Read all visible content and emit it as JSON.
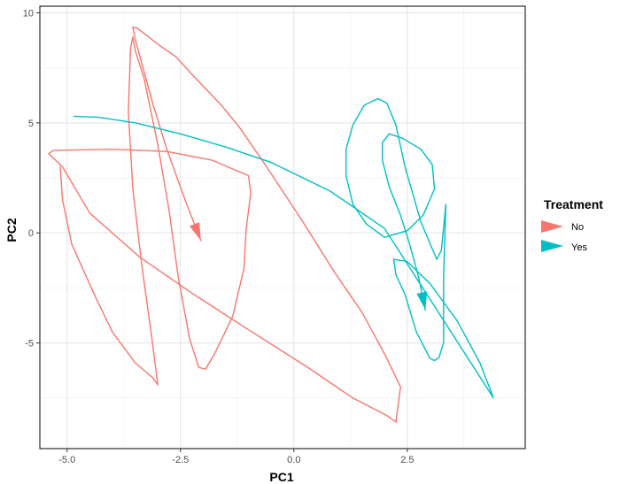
{
  "chart_data": {
    "type": "line",
    "xlabel": "PC1",
    "ylabel": "PC2",
    "xlim": [
      -5.6,
      5.1
    ],
    "ylim": [
      -9.8,
      10.3
    ],
    "x_ticks": [
      -5.0,
      -2.5,
      0.0,
      2.5
    ],
    "x_tick_labels": [
      "-5.0",
      "-2.5",
      "0.0",
      "2.5"
    ],
    "y_ticks": [
      -5,
      0,
      5,
      10
    ],
    "y_tick_labels": [
      "-5",
      "0",
      "5",
      "10"
    ],
    "grid": true,
    "legend": {
      "title": "Treatment",
      "placement": "right"
    },
    "series": [
      {
        "name": "No",
        "color": "#F8766D",
        "points": [
          [
            -2.05,
            -0.35
          ],
          [
            -2.4,
            1.5
          ],
          [
            -2.8,
            3.8
          ],
          [
            -3.1,
            5.8
          ],
          [
            -3.3,
            7.3
          ],
          [
            -3.5,
            8.8
          ],
          [
            -3.55,
            9.35
          ],
          [
            -3.45,
            9.3
          ],
          [
            -3.2,
            8.9
          ],
          [
            -2.95,
            8.5
          ],
          [
            -2.6,
            8.0
          ],
          [
            -2.2,
            7.1
          ],
          [
            -1.6,
            5.8
          ],
          [
            -1.2,
            4.8
          ],
          [
            -0.6,
            3.0
          ],
          [
            0.2,
            0.5
          ],
          [
            0.9,
            -1.8
          ],
          [
            1.5,
            -3.6
          ],
          [
            2.0,
            -5.5
          ],
          [
            2.35,
            -7.0
          ],
          [
            2.25,
            -8.6
          ],
          [
            2.05,
            -8.3
          ],
          [
            1.3,
            -7.5
          ],
          [
            0.3,
            -6.1
          ],
          [
            -1.0,
            -4.4
          ],
          [
            -2.2,
            -2.8
          ],
          [
            -3.4,
            -1.1
          ],
          [
            -4.5,
            0.9
          ],
          [
            -5.1,
            3.0
          ],
          [
            -5.4,
            3.6
          ],
          [
            -5.3,
            3.75
          ],
          [
            -4.0,
            3.8
          ],
          [
            -2.8,
            3.7
          ],
          [
            -1.8,
            3.3
          ],
          [
            -1.0,
            2.6
          ],
          [
            -0.95,
            1.8
          ],
          [
            -1.05,
            0.2
          ],
          [
            -1.1,
            -1.6
          ],
          [
            -1.35,
            -3.8
          ],
          [
            -1.75,
            -5.5
          ],
          [
            -1.95,
            -6.2
          ],
          [
            -2.1,
            -6.1
          ],
          [
            -2.3,
            -4.8
          ],
          [
            -2.55,
            -2.0
          ],
          [
            -2.75,
            1.0
          ],
          [
            -3.0,
            4.0
          ],
          [
            -3.3,
            7.0
          ],
          [
            -3.5,
            8.3
          ],
          [
            -3.55,
            8.9
          ],
          [
            -3.6,
            8.4
          ],
          [
            -3.65,
            5.5
          ],
          [
            -3.55,
            2.0
          ],
          [
            -3.35,
            -1.5
          ],
          [
            -3.15,
            -4.5
          ],
          [
            -3.0,
            -6.9
          ],
          [
            -3.1,
            -6.6
          ],
          [
            -3.5,
            -5.9
          ],
          [
            -4.0,
            -4.5
          ],
          [
            -4.4,
            -2.8
          ],
          [
            -4.9,
            -0.5
          ],
          [
            -5.1,
            1.5
          ],
          [
            -5.15,
            3.0
          ]
        ]
      },
      {
        "name": "Yes",
        "color": "#00BFC4",
        "points": [
          [
            2.9,
            -3.5
          ],
          [
            2.75,
            -2.0
          ],
          [
            2.55,
            -0.5
          ],
          [
            2.35,
            0.8
          ],
          [
            2.1,
            2.1
          ],
          [
            1.95,
            3.3
          ],
          [
            1.95,
            4.1
          ],
          [
            2.1,
            4.5
          ],
          [
            2.4,
            4.3
          ],
          [
            2.8,
            3.8
          ],
          [
            3.05,
            3.1
          ],
          [
            3.1,
            2.0
          ],
          [
            2.85,
            0.8
          ],
          [
            2.5,
            0.1
          ],
          [
            2.0,
            -0.2
          ],
          [
            1.6,
            0.4
          ],
          [
            1.3,
            1.3
          ],
          [
            1.15,
            2.6
          ],
          [
            1.15,
            3.8
          ],
          [
            1.3,
            4.9
          ],
          [
            1.55,
            5.8
          ],
          [
            1.85,
            6.1
          ],
          [
            2.05,
            5.9
          ],
          [
            2.25,
            4.9
          ],
          [
            2.45,
            3.0
          ],
          [
            2.8,
            0.5
          ],
          [
            3.15,
            -1.2
          ],
          [
            3.25,
            -0.8
          ],
          [
            3.35,
            1.3
          ],
          [
            3.3,
            -2.0
          ],
          [
            3.3,
            -5.0
          ],
          [
            3.2,
            -5.65
          ],
          [
            3.1,
            -5.8
          ],
          [
            3.0,
            -5.7
          ],
          [
            2.7,
            -4.5
          ],
          [
            2.45,
            -2.8
          ],
          [
            2.25,
            -1.9
          ],
          [
            2.2,
            -1.2
          ],
          [
            2.5,
            -1.3
          ],
          [
            3.0,
            -2.3
          ],
          [
            3.6,
            -4.0
          ],
          [
            4.1,
            -5.9
          ],
          [
            4.4,
            -7.5
          ],
          [
            2.0,
            0.2
          ],
          [
            0.8,
            1.9
          ],
          [
            -0.5,
            3.2
          ],
          [
            -1.5,
            3.9
          ],
          [
            -2.5,
            4.5
          ],
          [
            -3.5,
            5.0
          ],
          [
            -4.3,
            5.25
          ],
          [
            -4.85,
            5.3
          ]
        ]
      }
    ]
  }
}
